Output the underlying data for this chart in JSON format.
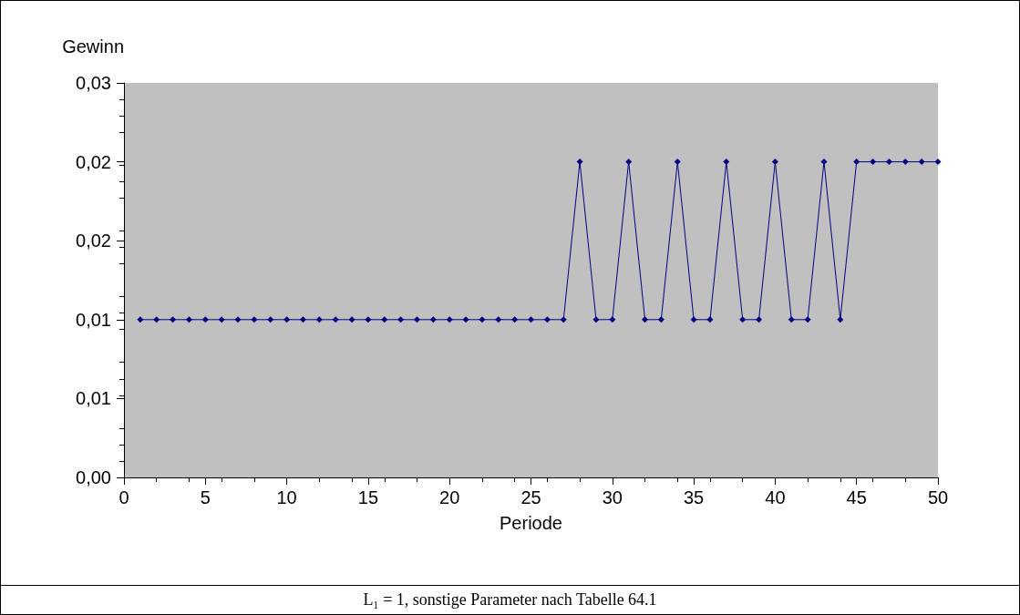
{
  "chart_data": {
    "type": "line",
    "xlabel": "Periode",
    "ylabel": "Gewinn",
    "x": [
      1,
      2,
      3,
      4,
      5,
      6,
      7,
      8,
      9,
      10,
      11,
      12,
      13,
      14,
      15,
      16,
      17,
      18,
      19,
      20,
      21,
      22,
      23,
      24,
      25,
      26,
      27,
      28,
      29,
      30,
      31,
      32,
      33,
      34,
      35,
      36,
      37,
      38,
      39,
      40,
      41,
      42,
      43,
      44,
      45,
      46,
      47,
      48,
      49,
      50
    ],
    "series": [
      {
        "color": "#000080",
        "values": [
          0.012,
          0.012,
          0.012,
          0.012,
          0.012,
          0.012,
          0.012,
          0.012,
          0.012,
          0.012,
          0.012,
          0.012,
          0.012,
          0.012,
          0.012,
          0.012,
          0.012,
          0.012,
          0.012,
          0.012,
          0.012,
          0.012,
          0.012,
          0.012,
          0.012,
          0.012,
          0.012,
          0.024,
          0.012,
          0.012,
          0.024,
          0.012,
          0.012,
          0.024,
          0.012,
          0.012,
          0.024,
          0.012,
          0.012,
          0.024,
          0.012,
          0.012,
          0.024,
          0.012,
          0.024,
          0.024,
          0.024,
          0.024,
          0.024,
          0.024
        ]
      }
    ],
    "xlim": [
      0,
      50
    ],
    "xticks": [
      0,
      5,
      10,
      15,
      20,
      25,
      30,
      35,
      40,
      45,
      50
    ],
    "ylim": [
      0,
      0.03
    ],
    "yticks": [
      {
        "value": 0,
        "label": "0,00"
      },
      {
        "value": 0.006,
        "label": "0,01"
      },
      {
        "value": 0.012,
        "label": "0,01"
      },
      {
        "value": 0.018,
        "label": "0,02"
      },
      {
        "value": 0.024,
        "label": "0,02"
      },
      {
        "value": 0.03,
        "label": "0,03"
      }
    ],
    "grid": false,
    "marker": "diamond",
    "line_style": "solid",
    "annotations": [
      "L₁ = 1, sonstige Parameter nach Tabelle 64.1"
    ]
  }
}
